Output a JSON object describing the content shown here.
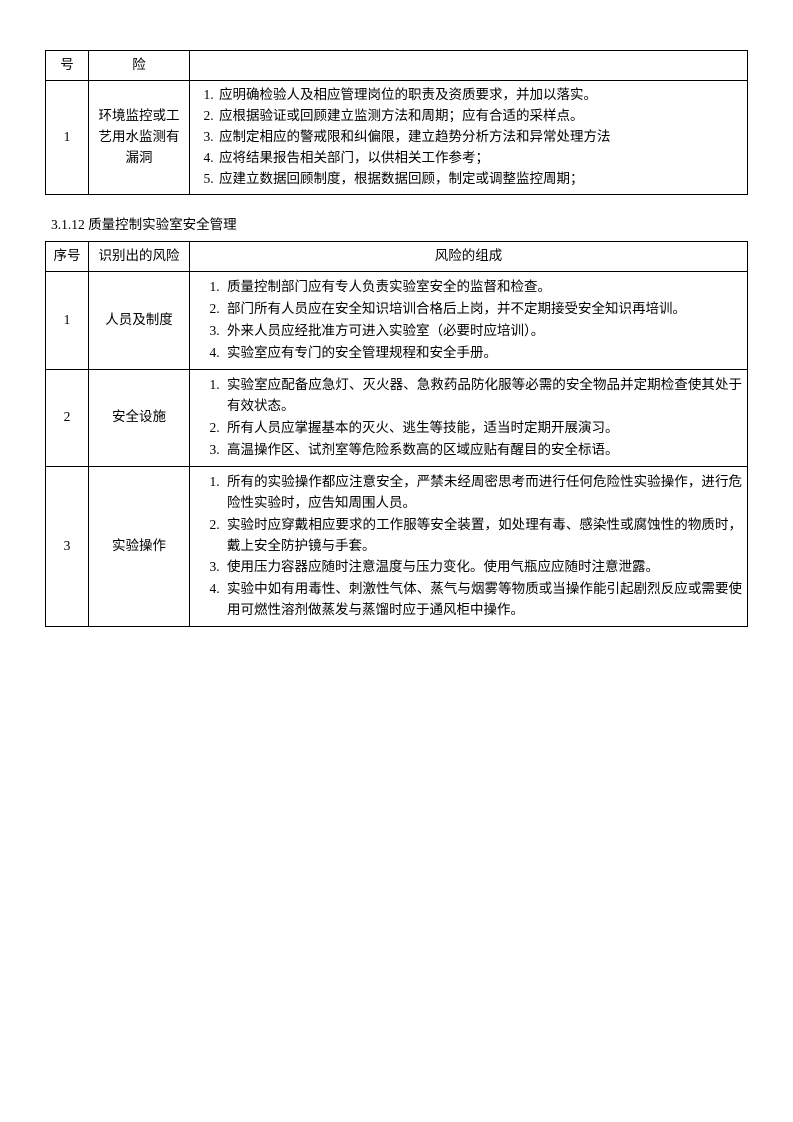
{
  "table1": {
    "headers": {
      "seq": "号",
      "risk": "险",
      "comp": ""
    },
    "row": {
      "seq": "1",
      "risk": "环境监控或工艺用水监测有漏洞",
      "items": [
        "应明确检验人及相应管理岗位的职责及资质要求，并加以落实。",
        "应根据验证或回顾建立监测方法和周期；应有合适的采样点。",
        "应制定相应的警戒限和纠偏限，建立趋势分析方法和异常处理方法",
        "应将结果报告相关部门，以供相关工作参考；",
        "应建立数据回顾制度，根据数据回顾，制定或调整监控周期；"
      ]
    }
  },
  "sectionTitle": "3.1.12 质量控制实验室安全管理",
  "table2": {
    "headers": {
      "seq": "序号",
      "risk": "识别出的风险",
      "comp": "风险的组成"
    },
    "rows": [
      {
        "seq": "1",
        "risk": "人员及制度",
        "items": [
          "质量控制部门应有专人负责实验室安全的监督和检查。",
          "部门所有人员应在安全知识培训合格后上岗，并不定期接受安全知识再培训。",
          "外来人员应经批准方可进入实验室（必要时应培训）。",
          "实验室应有专门的安全管理规程和安全手册。"
        ]
      },
      {
        "seq": "2",
        "risk": "安全设施",
        "items": [
          "实验室应配备应急灯、灭火器、急救药品防化服等必需的安全物品并定期检查使其处于有效状态。",
          "所有人员应掌握基本的灭火、逃生等技能，适当时定期开展演习。",
          "高温操作区、试剂室等危险系数高的区域应贴有醒目的安全标语。"
        ]
      },
      {
        "seq": "3",
        "risk": "实验操作",
        "items": [
          "所有的实验操作都应注意安全，严禁未经周密思考而进行任何危险性实验操作，进行危险性实验时，应告知周围人员。",
          "实验时应穿戴相应要求的工作服等安全装置，如处理有毒、感染性或腐蚀性的物质时，戴上安全防护镜与手套。",
          "使用压力容器应随时注意温度与压力变化。使用气瓶应应随时注意泄露。",
          "实验中如有用毒性、刺激性气体、蒸气与烟雾等物质或当操作能引起剧烈反应或需要使用可燃性溶剂做蒸发与蒸馏时应于通风柜中操作。"
        ]
      }
    ]
  }
}
